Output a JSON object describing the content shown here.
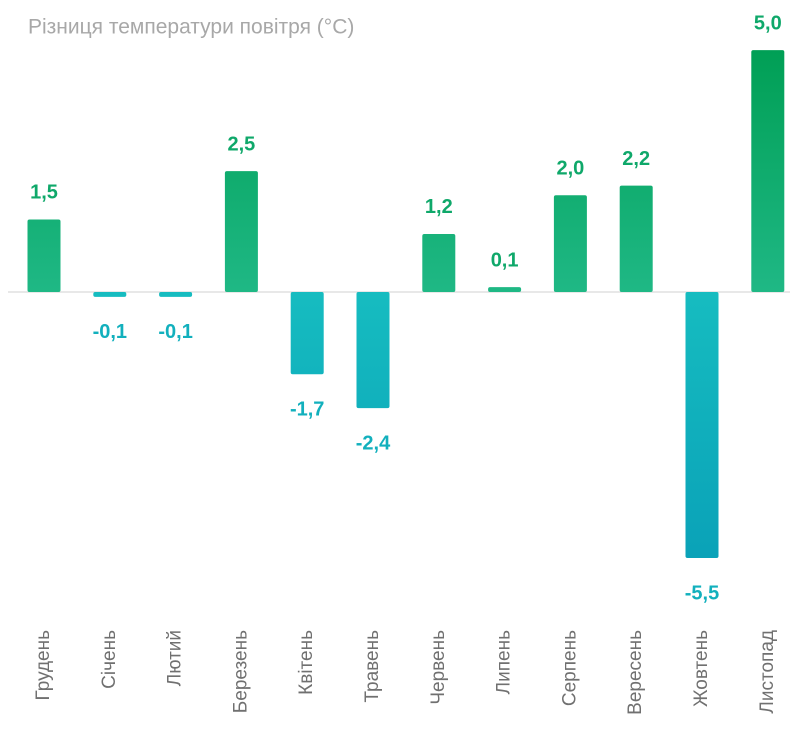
{
  "chart_data": {
    "type": "bar",
    "title": "Різниця температури повітря (°C)",
    "categories": [
      "Грудень",
      "Січень",
      "Лютий",
      "Березень",
      "Квітень",
      "Травень",
      "Червень",
      "Липень",
      "Серпень",
      "Вересень",
      "Жовтень",
      "Листопад"
    ],
    "values": [
      1.5,
      -0.1,
      -0.1,
      2.5,
      -1.7,
      -2.4,
      1.2,
      0.1,
      2.0,
      2.2,
      -5.5,
      5.0
    ],
    "value_labels": [
      "1,5",
      "-0,1",
      "-0,1",
      "2,5",
      "-1,7",
      "-2,4",
      "1,2",
      "0,1",
      "2,0",
      "2,2",
      "-5,5",
      "5,0"
    ],
    "positive_color": "#0fa86a",
    "negative_color": "#12b0bd"
  }
}
